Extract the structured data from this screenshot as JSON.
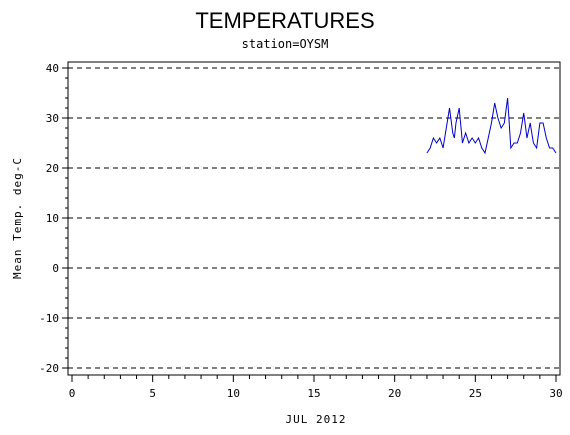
{
  "chart_data": {
    "type": "line",
    "title": "TEMPERATURES",
    "subtitle": "station=OYSM",
    "xlabel": "JUL 2012",
    "ylabel": "Mean Temp. deg-C",
    "xlim": [
      0,
      30
    ],
    "ylim": [
      -20,
      40
    ],
    "xticks": [
      0,
      5,
      10,
      15,
      20,
      25,
      30
    ],
    "yticks": [
      -20,
      -10,
      0,
      10,
      20,
      30,
      40
    ],
    "x_tick_labels": [
      "0",
      "5",
      "10",
      "15",
      "20",
      "25",
      "30"
    ],
    "y_tick_labels": [
      "-20",
      "-10",
      "0",
      "10",
      "20",
      "30",
      "40"
    ],
    "grid": "dashed horizontal at y ticks",
    "legend": "none",
    "series": [
      {
        "color": "#0000cc",
        "x": [
          22.0,
          22.2,
          22.4,
          22.6,
          22.8,
          23.0,
          23.2,
          23.4,
          23.6,
          23.7,
          23.8,
          24.0,
          24.2,
          24.4,
          24.6,
          24.8,
          25.0,
          25.2,
          25.4,
          25.6,
          25.8,
          26.0,
          26.2,
          26.4,
          26.6,
          26.8,
          27.0,
          27.2,
          27.4,
          27.6,
          27.8,
          28.0,
          28.2,
          28.4,
          28.6,
          28.8,
          29.0,
          29.2,
          29.4,
          29.6,
          29.8,
          30.0
        ],
        "y": [
          23.0,
          24.0,
          26.0,
          25.0,
          26.0,
          24.0,
          28.0,
          32.0,
          27.0,
          26.0,
          29.0,
          32.0,
          25.0,
          27.0,
          25.0,
          26.0,
          25.0,
          26.0,
          24.0,
          23.0,
          26.0,
          29.0,
          33.0,
          30.0,
          28.0,
          29.0,
          34.0,
          24.0,
          25.0,
          25.0,
          27.0,
          31.0,
          26.0,
          29.0,
          25.0,
          24.0,
          29.0,
          29.0,
          26.0,
          24.0,
          24.0,
          23.0
        ]
      }
    ]
  }
}
